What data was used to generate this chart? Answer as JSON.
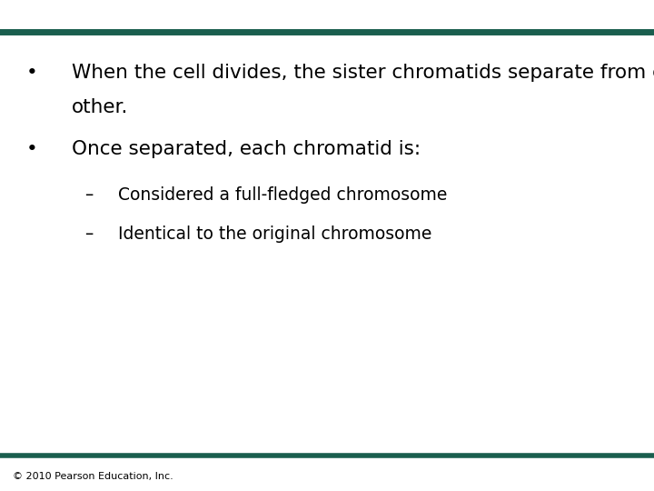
{
  "background_color": "#ffffff",
  "bar_color": "#1a5e4e",
  "bullet1_line1": "When the cell divides, the sister chromatids separate from each",
  "bullet1_line2": "other.",
  "bullet2": "Once separated, each chromatid is:",
  "sub1": "Considered a full-fledged chromosome",
  "sub2": "Identical to the original chromosome",
  "footer": "© 2010 Pearson Education, Inc.",
  "text_color": "#000000",
  "main_fontsize": 15.5,
  "sub_fontsize": 13.5,
  "footer_fontsize": 8,
  "bullet_symbol": "•",
  "dash_symbol": "–",
  "fig_width": 7.2,
  "fig_height": 5.4,
  "dpi": 100
}
